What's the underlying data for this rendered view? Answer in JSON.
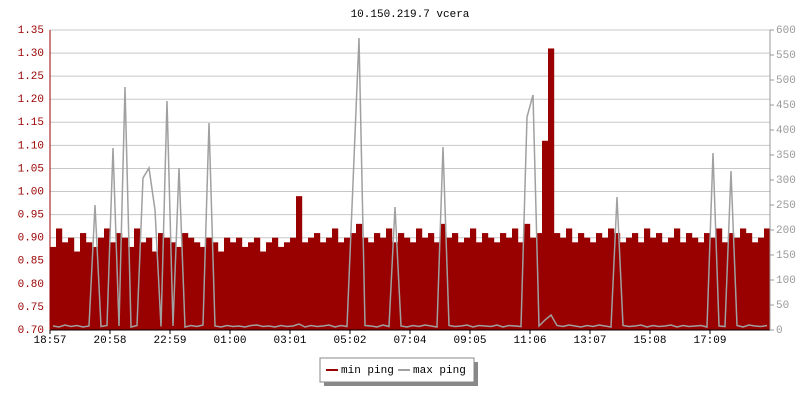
{
  "chart_data": {
    "type": "line",
    "title": "10.150.219.7 vcera",
    "categories": [
      "18:57",
      null,
      null,
      null,
      null,
      null,
      null,
      null,
      null,
      null,
      "20:58",
      null,
      null,
      null,
      null,
      null,
      null,
      null,
      null,
      null,
      "22:59",
      null,
      null,
      null,
      null,
      null,
      null,
      null,
      null,
      null,
      "01:00",
      null,
      null,
      null,
      null,
      null,
      null,
      null,
      null,
      null,
      "03:01",
      null,
      null,
      null,
      null,
      null,
      null,
      null,
      null,
      null,
      "05:02",
      null,
      null,
      null,
      null,
      null,
      null,
      null,
      null,
      null,
      "07:04",
      null,
      null,
      null,
      null,
      null,
      null,
      null,
      null,
      null,
      "09:05",
      null,
      null,
      null,
      null,
      null,
      null,
      null,
      null,
      null,
      "11:06",
      null,
      null,
      null,
      null,
      null,
      null,
      null,
      null,
      null,
      "13:07",
      null,
      null,
      null,
      null,
      null,
      null,
      null,
      null,
      null,
      "15:08",
      null,
      null,
      null,
      null,
      null,
      null,
      null,
      null,
      null,
      "17:09",
      null,
      null,
      null,
      null,
      null,
      null,
      null,
      null,
      null
    ],
    "series": [
      {
        "name": "min ping",
        "color": "#990000",
        "values": [
          0.88,
          0.92,
          0.89,
          0.9,
          0.87,
          0.91,
          0.89,
          0.88,
          0.9,
          0.92,
          0.89,
          0.91,
          0.9,
          0.88,
          0.92,
          0.89,
          0.9,
          0.87,
          0.91,
          0.9,
          0.89,
          0.88,
          0.91,
          0.9,
          0.89,
          0.88,
          0.9,
          0.89,
          0.87,
          0.9,
          0.89,
          0.9,
          0.88,
          0.89,
          0.9,
          0.87,
          0.89,
          0.9,
          0.88,
          0.89,
          0.9,
          0.99,
          0.89,
          0.9,
          0.91,
          0.89,
          0.9,
          0.92,
          0.89,
          0.9,
          0.91,
          0.93,
          0.9,
          0.89,
          0.91,
          0.9,
          0.92,
          0.89,
          0.91,
          0.9,
          0.89,
          0.92,
          0.9,
          0.91,
          0.89,
          0.93,
          0.9,
          0.91,
          0.89,
          0.9,
          0.92,
          0.89,
          0.91,
          0.9,
          0.89,
          0.91,
          0.9,
          0.92,
          0.89,
          0.93,
          0.9,
          0.91,
          1.11,
          1.31,
          0.91,
          0.9,
          0.92,
          0.89,
          0.91,
          0.9,
          0.89,
          0.91,
          0.9,
          0.92,
          0.91,
          0.89,
          0.9,
          0.91,
          0.89,
          0.92,
          0.9,
          0.91,
          0.89,
          0.9,
          0.92,
          0.89,
          0.91,
          0.9,
          0.89,
          0.91,
          0.9,
          0.92,
          0.89,
          0.91,
          0.9,
          0.92,
          0.91,
          0.89,
          0.9,
          0.92
        ]
      },
      {
        "name": "max ping",
        "color": "#a0a0a0",
        "axis": "y2",
        "values": [
          8,
          6,
          10,
          7,
          9,
          6,
          8,
          250,
          7,
          9,
          364,
          8,
          486,
          6,
          9,
          304,
          324,
          240,
          7,
          458,
          8,
          324,
          6,
          9,
          7,
          10,
          414,
          8,
          6,
          9,
          7,
          8,
          6,
          9,
          10,
          7,
          8,
          6,
          9,
          7,
          8,
          12,
          6,
          9,
          7,
          8,
          10,
          6,
          9,
          7,
          294,
          584,
          9,
          8,
          6,
          10,
          7,
          246,
          8,
          6,
          9,
          7,
          10,
          8,
          6,
          366,
          9,
          7,
          8,
          10,
          6,
          9,
          8,
          7,
          10,
          6,
          9,
          8,
          7,
          426,
          470,
          8,
          20,
          30,
          9,
          7,
          10,
          8,
          6,
          9,
          7,
          10,
          8,
          6,
          266,
          9,
          7,
          8,
          10,
          6,
          9,
          7,
          8,
          10,
          6,
          9,
          7,
          8,
          9,
          6,
          354,
          8,
          7,
          318,
          9,
          6,
          10,
          8,
          7,
          9
        ]
      }
    ],
    "ylim": [
      0.7,
      1.35
    ],
    "yticks": [
      {
        "value": 0.7,
        "label": "0.70"
      },
      0.75,
      {
        "value": 0.8,
        "label": "0.80"
      },
      0.85,
      {
        "value": 0.9,
        "label": "0.90"
      },
      0.95,
      {
        "value": 1.0,
        "label": "1.00"
      },
      1.05,
      {
        "value": 1.1,
        "label": "1.10"
      },
      1.15,
      {
        "value": 1.2,
        "label": "1.20"
      },
      1.25,
      {
        "value": 1.3,
        "label": "1.30"
      },
      1.35
    ],
    "y2lim": [
      0,
      600
    ],
    "y2ticks": [
      0,
      50,
      100,
      150,
      200,
      250,
      300,
      350,
      400,
      450,
      500,
      550,
      600
    ],
    "grid": true
  }
}
